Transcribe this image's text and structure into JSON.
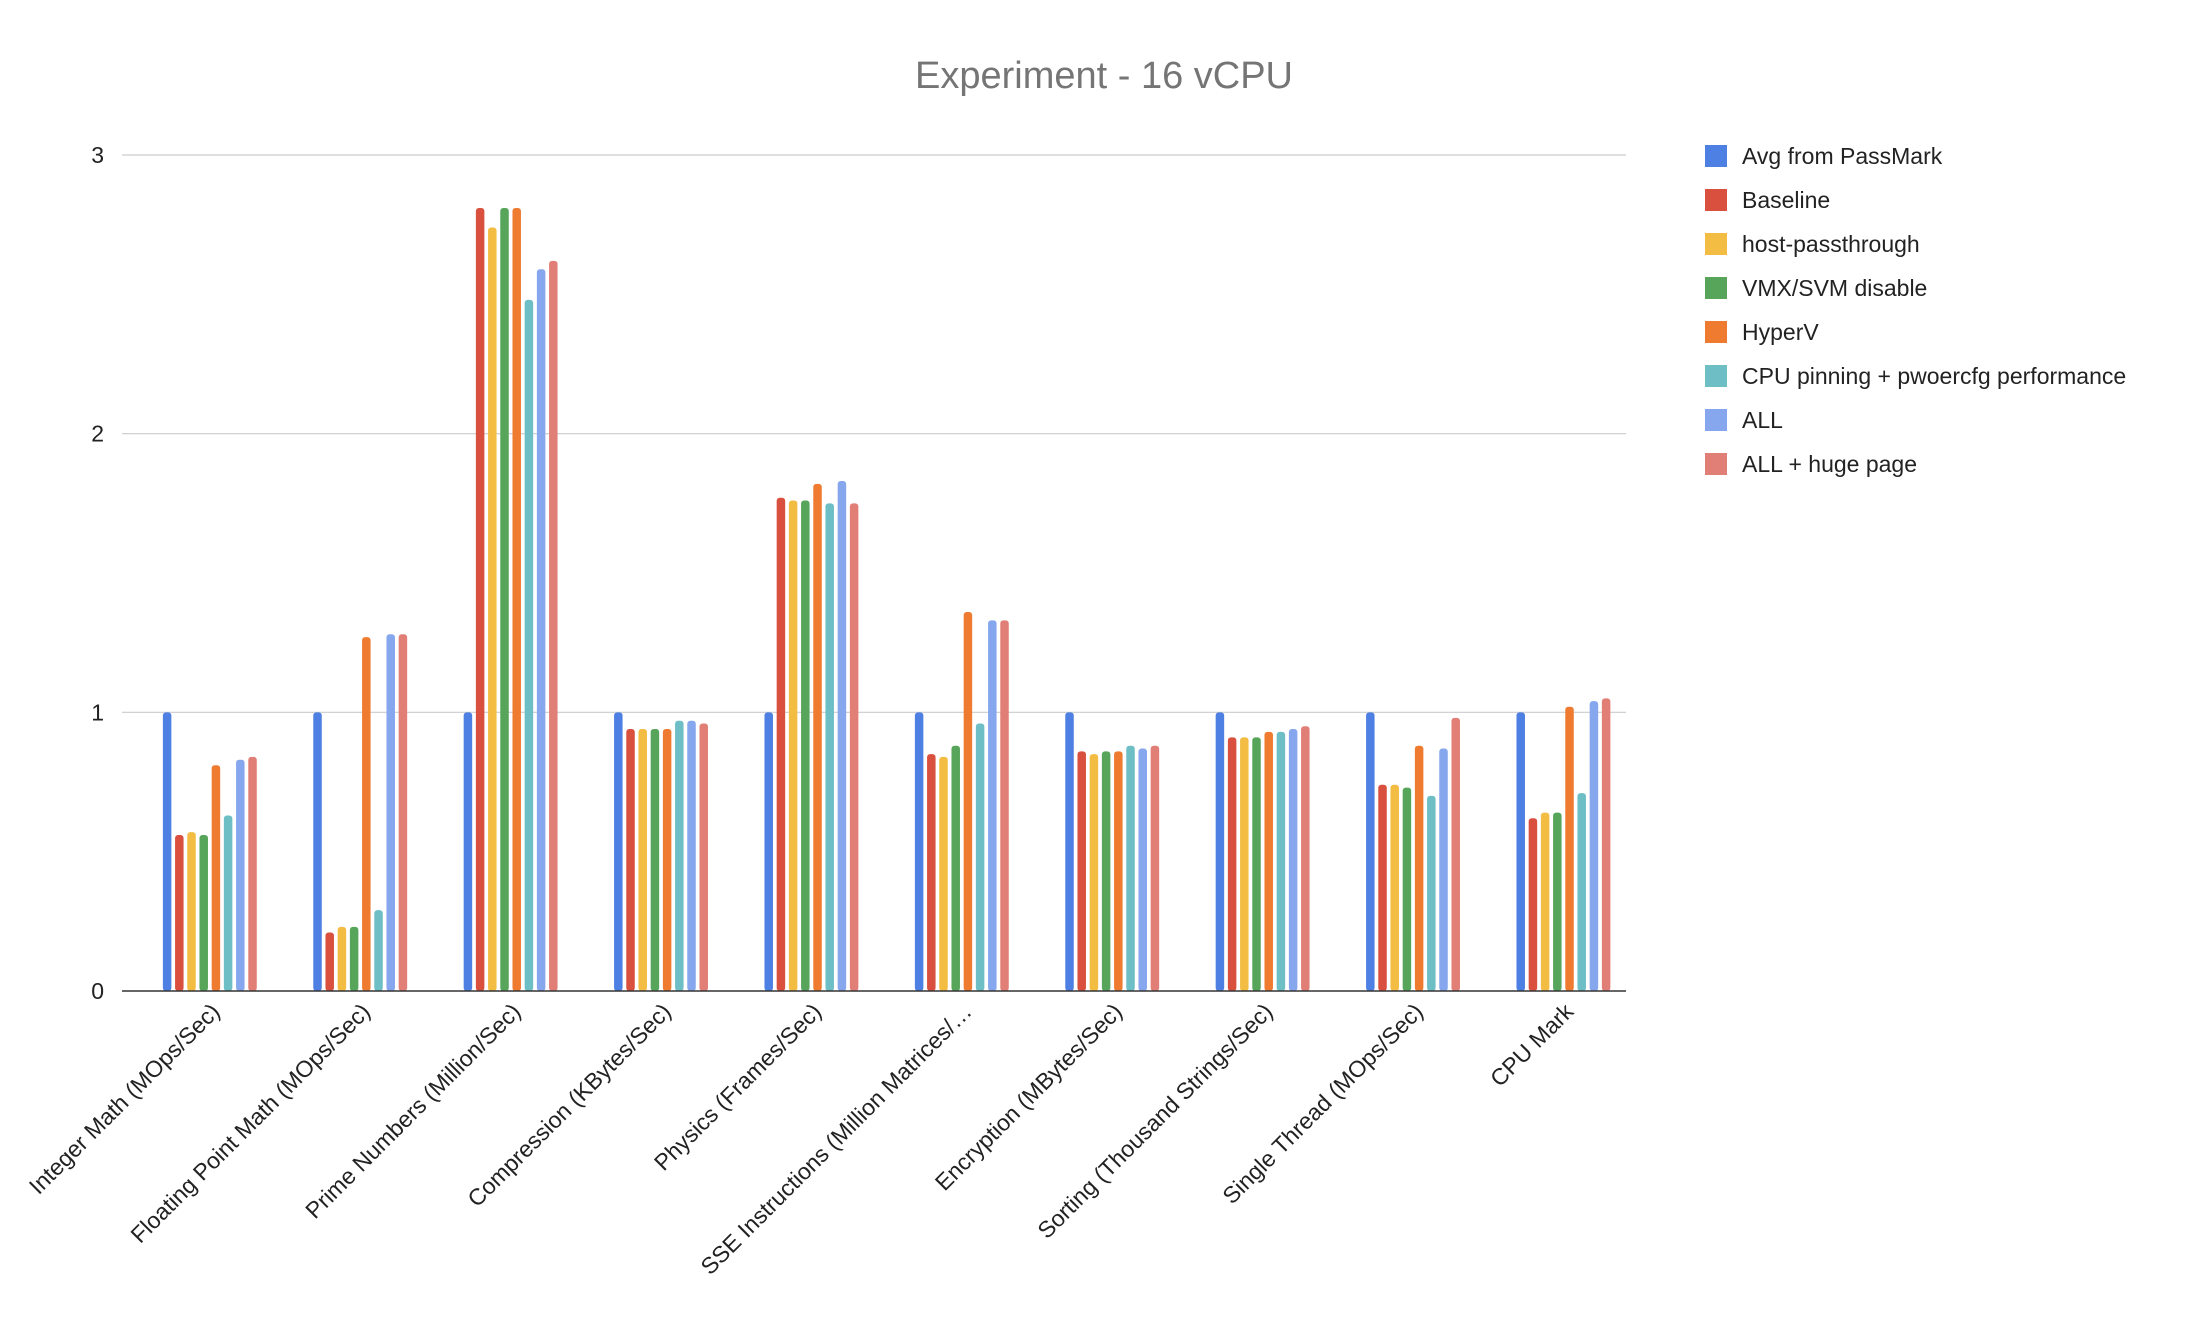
{
  "chart_data": {
    "type": "bar",
    "title": "Experiment - 16 vCPU",
    "xlabel": "",
    "ylabel": "",
    "ylim": [
      0,
      3
    ],
    "yticks": [
      "0",
      "1",
      "2",
      "3"
    ],
    "grid": true,
    "legend_position": "right",
    "categories": [
      "Integer Math (MOps/Sec)",
      "Floating Point Math (MOps/Sec)",
      "Prime Numbers (Million/Sec)",
      "Compression (KBytes/Sec)",
      "Physics (Frames/Sec)",
      "SSE Instructions (Million Matrices/…",
      "Encryption (MBytes/Sec)",
      "Sorting (Thousand Strings/Sec)",
      "Single Thread (MOps/Sec)",
      "CPU Mark"
    ],
    "series": [
      {
        "name": "Avg from PassMark",
        "color": "#4e7fe2",
        "values": [
          1,
          1,
          1,
          1,
          1,
          1,
          1,
          1,
          1,
          1
        ]
      },
      {
        "name": "Baseline",
        "color": "#d9503f",
        "values": [
          0.56,
          0.21,
          2.81,
          0.94,
          1.77,
          0.85,
          0.86,
          0.91,
          0.74,
          0.62
        ]
      },
      {
        "name": "host-passthrough",
        "color": "#f2bd42",
        "values": [
          0.57,
          0.23,
          2.74,
          0.94,
          1.76,
          0.84,
          0.85,
          0.91,
          0.74,
          0.64
        ]
      },
      {
        "name": "VMX/SVM disable",
        "color": "#57a55a",
        "values": [
          0.56,
          0.23,
          2.81,
          0.94,
          1.76,
          0.88,
          0.86,
          0.91,
          0.73,
          0.64
        ]
      },
      {
        "name": "HyperV",
        "color": "#ef7b31",
        "values": [
          0.81,
          1.27,
          2.81,
          0.94,
          1.82,
          1.36,
          0.86,
          0.93,
          0.88,
          1.02
        ]
      },
      {
        "name": "CPU pinning + pwoercfg performance",
        "color": "#6dbfc5",
        "values": [
          0.63,
          0.29,
          2.48,
          0.97,
          1.75,
          0.96,
          0.88,
          0.93,
          0.7,
          0.71
        ]
      },
      {
        "name": "ALL",
        "color": "#86a7ee",
        "values": [
          0.83,
          1.28,
          2.59,
          0.97,
          1.83,
          1.33,
          0.87,
          0.94,
          0.87,
          1.04
        ]
      },
      {
        "name": "ALL + huge page",
        "color": "#e17f77",
        "values": [
          0.84,
          1.28,
          2.62,
          0.96,
          1.75,
          1.33,
          0.88,
          0.95,
          0.98,
          1.05
        ]
      }
    ]
  }
}
